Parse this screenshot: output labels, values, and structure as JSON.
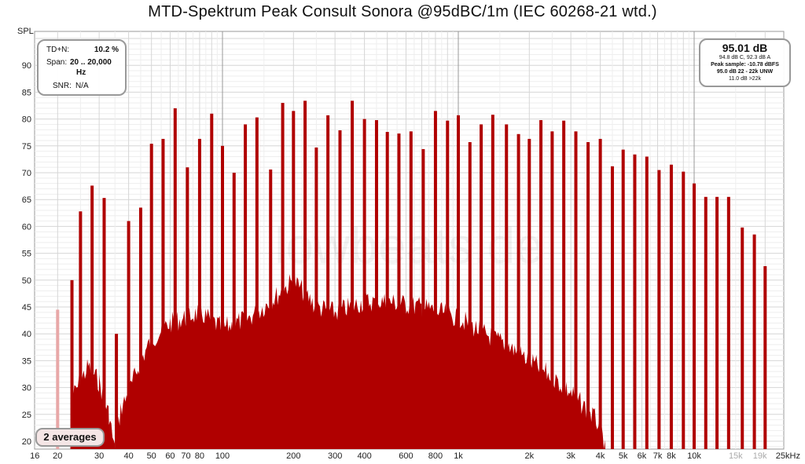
{
  "chart_data": {
    "type": "bar",
    "title": "MTD-Spektrum Peak Consult Sonora @95dBC/1m (IEC 60268-21 wtd.)",
    "ylabel": "SPL",
    "xlabel": "",
    "xscale": "log",
    "xlim": [
      16,
      25000
    ],
    "ylim": [
      18.5,
      96
    ],
    "yticks": [
      "20",
      "25",
      "30",
      "35",
      "40",
      "45",
      "50",
      "55",
      "60",
      "65",
      "70",
      "75",
      "80",
      "85",
      "90"
    ],
    "xticks": [
      {
        "f": 16,
        "label": "16"
      },
      {
        "f": 20,
        "label": "20"
      },
      {
        "f": 30,
        "label": "30"
      },
      {
        "f": 40,
        "label": "40"
      },
      {
        "f": 50,
        "label": "50"
      },
      {
        "f": 60,
        "label": "60"
      },
      {
        "f": 70,
        "label": "70"
      },
      {
        "f": 80,
        "label": "80"
      },
      {
        "f": 100,
        "label": "100"
      },
      {
        "f": 200,
        "label": "200"
      },
      {
        "f": 300,
        "label": "300"
      },
      {
        "f": 400,
        "label": "400"
      },
      {
        "f": 600,
        "label": "600"
      },
      {
        "f": 800,
        "label": "800"
      },
      {
        "f": 1000,
        "label": "1k"
      },
      {
        "f": 2000,
        "label": "2k"
      },
      {
        "f": 3000,
        "label": "3k"
      },
      {
        "f": 4000,
        "label": "4k"
      },
      {
        "f": 5000,
        "label": "5k"
      },
      {
        "f": 6000,
        "label": "6k"
      },
      {
        "f": 7000,
        "label": "7k"
      },
      {
        "f": 8000,
        "label": "8k"
      },
      {
        "f": 10000,
        "label": "10k"
      },
      {
        "f": 15000,
        "label": "15k",
        "muted": true
      },
      {
        "f": 19000,
        "label": "19k",
        "muted": true
      },
      {
        "f": 25000,
        "label": "25kHz"
      }
    ],
    "series": [
      {
        "name": "tone peaks",
        "values": [
          [
            20,
            44.5
          ],
          [
            23,
            50
          ],
          [
            25,
            62.8
          ],
          [
            28,
            67.6
          ],
          [
            31.5,
            65.3
          ],
          [
            35.5,
            40
          ],
          [
            40,
            61
          ],
          [
            45,
            63.5
          ],
          [
            50,
            75.4
          ],
          [
            56,
            76.3
          ],
          [
            63,
            82
          ],
          [
            71,
            71
          ],
          [
            80,
            76.3
          ],
          [
            90,
            81
          ],
          [
            100,
            75
          ],
          [
            112,
            70
          ],
          [
            125,
            79
          ],
          [
            140,
            80.3
          ],
          [
            160,
            70.6
          ],
          [
            180,
            83
          ],
          [
            200,
            81.5
          ],
          [
            224,
            83.4
          ],
          [
            250,
            74.7
          ],
          [
            280,
            80.7
          ],
          [
            315,
            77.9
          ],
          [
            355,
            83.4
          ],
          [
            400,
            80
          ],
          [
            450,
            79.8
          ],
          [
            500,
            77.6
          ],
          [
            560,
            77.3
          ],
          [
            630,
            77.7
          ],
          [
            710,
            74.4
          ],
          [
            800,
            81.5
          ],
          [
            900,
            79.7
          ],
          [
            1000,
            80.7
          ],
          [
            1120,
            75.7
          ],
          [
            1250,
            79
          ],
          [
            1400,
            80.8
          ],
          [
            1600,
            79
          ],
          [
            1800,
            77.2
          ],
          [
            2000,
            76.3
          ],
          [
            2240,
            79.8
          ],
          [
            2500,
            77.7
          ],
          [
            2800,
            79.7
          ],
          [
            3150,
            77.7
          ],
          [
            3550,
            75.7
          ],
          [
            4000,
            76.3
          ],
          [
            4500,
            71.2
          ],
          [
            5000,
            74.3
          ],
          [
            5600,
            73.4
          ],
          [
            6300,
            73
          ],
          [
            7100,
            70.5
          ],
          [
            8000,
            71.5
          ],
          [
            9000,
            70.2
          ],
          [
            10000,
            68
          ],
          [
            11200,
            65.5
          ],
          [
            12500,
            65.5
          ],
          [
            14000,
            65.5
          ],
          [
            16000,
            59.8
          ],
          [
            18000,
            58.5
          ],
          [
            20000,
            52.6
          ]
        ]
      },
      {
        "name": "noise floor",
        "values": [
          [
            23,
            30
          ],
          [
            27,
            36
          ],
          [
            30,
            33
          ],
          [
            33,
            27
          ],
          [
            35,
            20
          ],
          [
            37,
            28
          ],
          [
            40,
            31
          ],
          [
            45,
            37
          ],
          [
            50,
            41
          ],
          [
            60,
            44
          ],
          [
            70,
            45
          ],
          [
            80,
            46
          ],
          [
            100,
            43
          ],
          [
            130,
            45
          ],
          [
            160,
            48
          ],
          [
            200,
            52
          ],
          [
            250,
            47
          ],
          [
            300,
            46
          ],
          [
            400,
            48
          ],
          [
            500,
            48
          ],
          [
            700,
            47
          ],
          [
            1000,
            45
          ],
          [
            1300,
            42
          ],
          [
            1600,
            40
          ],
          [
            2000,
            37
          ],
          [
            2500,
            34
          ],
          [
            3000,
            31
          ],
          [
            3500,
            28
          ],
          [
            4000,
            25
          ],
          [
            4200,
            20
          ]
        ]
      }
    ],
    "colors": {
      "bar": "#b00000",
      "first_bar": "#e8a8a8",
      "grid": "#d6d6d6",
      "muted_tick": "#aaaaaa"
    },
    "watermark": "lowbeats.de"
  },
  "left_box": {
    "tdn_label": "TD+N:",
    "tdn_value": "10.2 %",
    "span_label": "Span:",
    "span_value": "20 .. 20,000",
    "span_unit": "Hz",
    "snr_label": "SNR:",
    "snr_value": "N/A"
  },
  "right_box": {
    "level": "95.01 dB",
    "line1": "94.8 dB C, 92.3 dB A",
    "line2": "Peak sample: -10.78 dBFS",
    "line3": "95.0 dB 22 - 22k UNW",
    "line4": "11.0 dB >22k"
  },
  "averages": "2 averages"
}
